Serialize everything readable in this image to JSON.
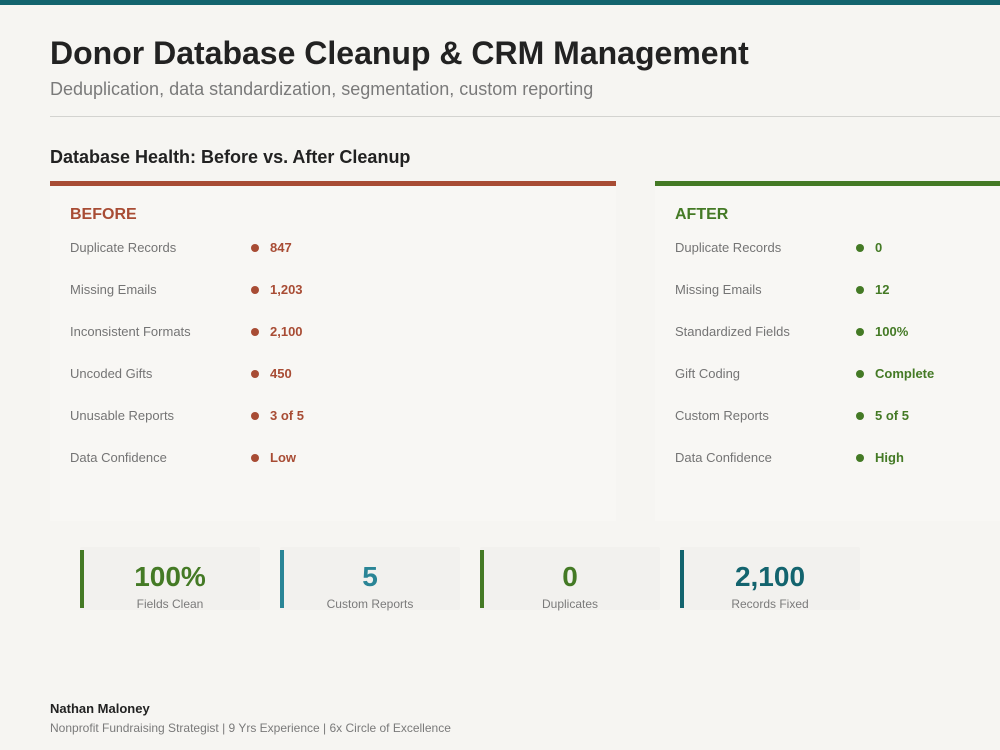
{
  "page": {
    "title": "Donor Database Cleanup & CRM Management",
    "subtitle": "Deduplication, data standardization, segmentation, custom reporting"
  },
  "section": {
    "title": "Database Health: Before vs. After Cleanup"
  },
  "colors": {
    "before_accent": "#a84c34",
    "after_accent": "#447a25",
    "teal_accent": "#13646e",
    "blue_accent": "#2a8596"
  },
  "before": {
    "heading": "BEFORE",
    "rows": [
      {
        "label": "Duplicate Records",
        "value": "847"
      },
      {
        "label": "Missing Emails",
        "value": "1,203"
      },
      {
        "label": "Inconsistent Formats",
        "value": "2,100"
      },
      {
        "label": "Uncoded Gifts",
        "value": "450"
      },
      {
        "label": "Unusable Reports",
        "value": "3 of 5"
      },
      {
        "label": "Data Confidence",
        "value": "Low"
      }
    ]
  },
  "after": {
    "heading": "AFTER",
    "rows": [
      {
        "label": "Duplicate Records",
        "value": "0"
      },
      {
        "label": "Missing Emails",
        "value": "12"
      },
      {
        "label": "Standardized Fields",
        "value": "100%"
      },
      {
        "label": "Gift Coding",
        "value": "Complete"
      },
      {
        "label": "Custom Reports",
        "value": "5 of 5"
      },
      {
        "label": "Data Confidence",
        "value": "High"
      }
    ]
  },
  "stats": [
    {
      "value": "100%",
      "label": "Fields Clean",
      "color": "#447a25"
    },
    {
      "value": "5",
      "label": "Custom Reports",
      "color": "#2a8596"
    },
    {
      "value": "0",
      "label": "Duplicates",
      "color": "#447a25"
    },
    {
      "value": "2,100",
      "label": "Records Fixed",
      "color": "#13646e"
    }
  ],
  "footer": {
    "name": "Nathan Maloney",
    "meta": "Nonprofit Fundraising Strategist | 9 Yrs Experience | 6x Circle of Excellence"
  }
}
